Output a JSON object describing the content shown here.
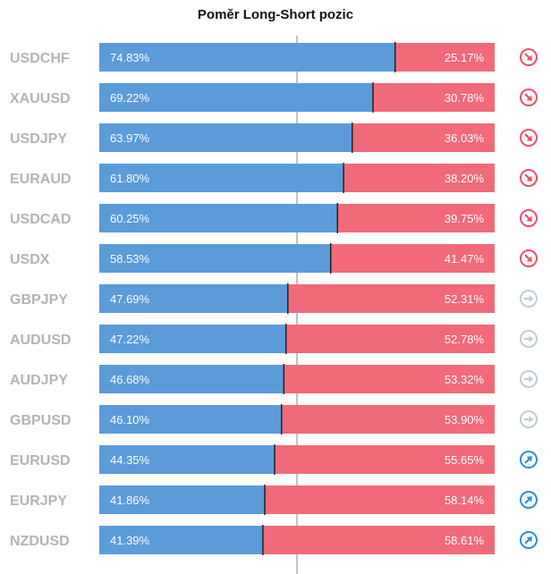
{
  "chart_data": {
    "type": "bar",
    "stacked": true,
    "orientation": "horizontal",
    "title": "Poměr Long-Short pozic",
    "categories": [
      "USDCHF",
      "XAUUSD",
      "USDJPY",
      "EURAUD",
      "USDCAD",
      "USDX",
      "GBPJPY",
      "AUDUSD",
      "AUDJPY",
      "GBPUSD",
      "EURUSD",
      "EURJPY",
      "NZDUSD"
    ],
    "series": [
      {
        "values": [
          74.83,
          69.22,
          63.97,
          61.8,
          60.25,
          58.53,
          47.69,
          47.22,
          46.68,
          46.1,
          44.35,
          41.86,
          41.39
        ],
        "color": "#5b9bd9"
      },
      {
        "values": [
          25.17,
          30.78,
          36.03,
          38.2,
          39.75,
          41.47,
          52.31,
          52.78,
          53.32,
          53.9,
          55.65,
          58.14,
          58.61
        ],
        "color": "#f06a7a"
      }
    ],
    "labels_long": [
      "74.83%",
      "69.22%",
      "63.97%",
      "61.80%",
      "60.25%",
      "58.53%",
      "47.69%",
      "47.22%",
      "46.68%",
      "46.10%",
      "44.35%",
      "41.86%",
      "41.39%"
    ],
    "labels_short": [
      "25.17%",
      "30.78%",
      "36.03%",
      "38.20%",
      "39.75%",
      "41.47%",
      "52.31%",
      "52.78%",
      "53.32%",
      "53.90%",
      "55.65%",
      "58.14%",
      "58.61%"
    ],
    "xlim": [
      0,
      100
    ],
    "reference_line": 50,
    "trend_icons": [
      "arrow-down-right-icon",
      "arrow-down-right-icon",
      "arrow-down-right-icon",
      "arrow-down-right-icon",
      "arrow-down-right-icon",
      "arrow-down-right-icon",
      "arrow-right-icon",
      "arrow-right-icon",
      "arrow-right-icon",
      "arrow-right-icon",
      "arrow-up-right-icon",
      "arrow-up-right-icon",
      "arrow-up-right-icon"
    ],
    "icon_colors": {
      "arrow-down-right-icon": "#f0506a",
      "arrow-right-icon": "#bfccd8",
      "arrow-up-right-icon": "#2e8fd6"
    }
  }
}
